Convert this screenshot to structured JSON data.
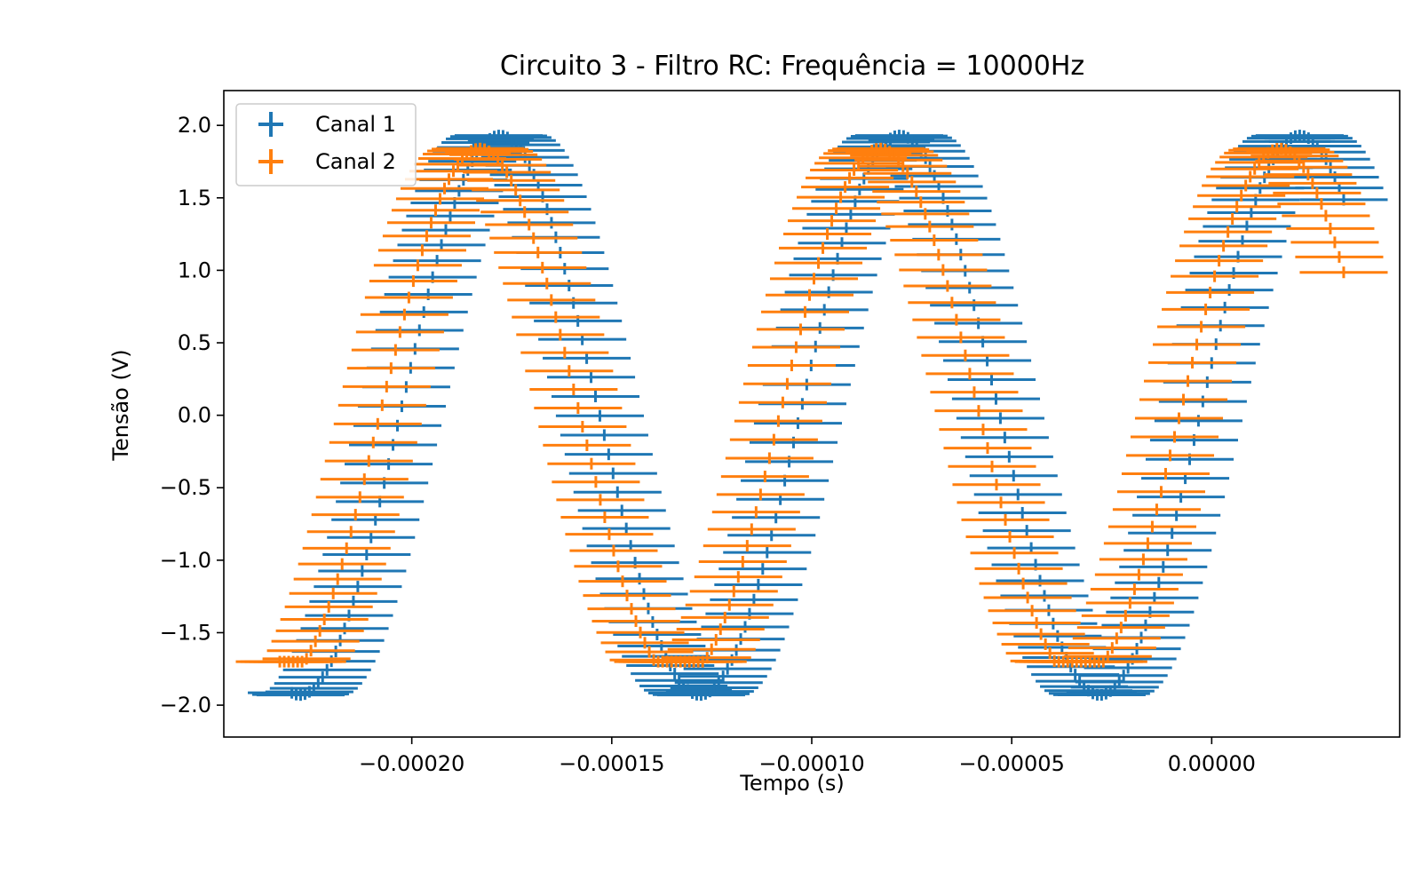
{
  "chart_data": {
    "type": "scatter",
    "title": "Circuito 3 - Filtro RC: Frequência = 10000Hz",
    "xlabel": "Tempo (s)",
    "ylabel": "Tensão (V)",
    "xlim": [
      -0.000247,
      4.7e-05
    ],
    "ylim": [
      -2.22,
      2.24
    ],
    "x_ticks": [
      -0.0002,
      -0.00015,
      -0.0001,
      -5e-05,
      0.0
    ],
    "x_tick_labels": [
      "−0.00020",
      "−0.00015",
      "−0.00010",
      "−0.00005",
      "0.00000"
    ],
    "y_ticks": [
      2.0,
      1.5,
      1.0,
      0.5,
      0.0,
      -0.5,
      -1.0,
      -1.5,
      -2.0
    ],
    "y_tick_labels": [
      "2.0",
      "1.5",
      "1.0",
      "0.5",
      "0.0",
      "−0.5",
      "−1.0",
      "−1.5",
      "−2.0"
    ],
    "grid": false,
    "legend_position": "upper-left",
    "series": [
      {
        "name": "Canal 1",
        "color": "#1f77b4",
        "marker": "errorbar-cross",
        "x_range": [
          -0.00023,
          3.3e-05
        ],
        "amplitude": 1.93,
        "frequency_hz": 10000,
        "peak_times": [
          -0.000178,
          -7.8e-05,
          2.2e-05
        ],
        "trough_times": [
          -0.000228,
          -0.000128,
          -2.8e-05
        ],
        "x_error": 1.1e-05,
        "y_error": 0.04
      },
      {
        "name": "Canal 2",
        "color": "#ff7f0e",
        "marker": "errorbar-cross",
        "x_range": [
          -0.000233,
          3.3e-05
        ],
        "amplitude": 1.84,
        "frequency_hz": 10000,
        "peak_times": [
          -0.000183,
          -8.3e-05,
          1.7e-05
        ],
        "trough_times": [
          -0.000133,
          -3.3e-05
        ],
        "clip_values": [
          -1.7,
          1.84
        ],
        "x_error": 1.1e-05,
        "y_error": 0.04
      }
    ]
  }
}
